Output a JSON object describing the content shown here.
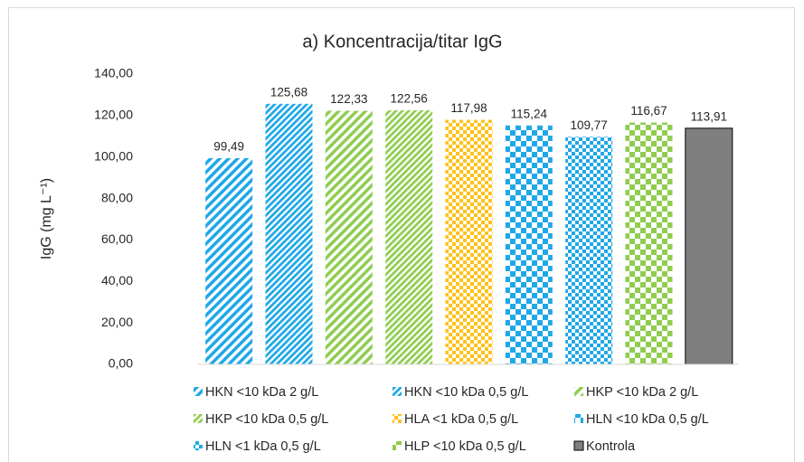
{
  "chart_data": {
    "type": "bar",
    "title": "a) Koncentracija/titar IgG",
    "y_label": "IgG (mg L⁻¹)",
    "ylim": [
      0,
      140
    ],
    "yticks": [
      {
        "value": 0,
        "label": "0,00"
      },
      {
        "value": 20,
        "label": "20,00"
      },
      {
        "value": 40,
        "label": "40,00"
      },
      {
        "value": 60,
        "label": "60,00"
      },
      {
        "value": 80,
        "label": "80,00"
      },
      {
        "value": 100,
        "label": "100,00"
      },
      {
        "value": 120,
        "label": "120,00"
      },
      {
        "value": 140,
        "label": "140,00"
      }
    ],
    "grid": false,
    "legend": "bottom",
    "series": [
      {
        "name": "HKN <10 kDa 2 g/L",
        "color": "#1fa8e8",
        "pattern": "stripes",
        "values": [
          99.49
        ],
        "value_labels": [
          "99,49"
        ]
      },
      {
        "name": "HKN <10 kDa 0,5 g/L",
        "color": "#1fa8e8",
        "pattern": "stripes-dense",
        "values": [
          125.68
        ],
        "value_labels": [
          "125,68"
        ]
      },
      {
        "name": "HKP <10 kDa 2 g/L",
        "color": "#8fcd4f",
        "pattern": "stripes",
        "values": [
          122.33
        ],
        "value_labels": [
          "122,33"
        ]
      },
      {
        "name": "HKP <10 kDa 0,5 g/L",
        "color": "#8fcd4f",
        "pattern": "stripes-dense",
        "values": [
          122.56
        ],
        "value_labels": [
          "122,56"
        ]
      },
      {
        "name": "HLA <1 kDa 0,5 g/L",
        "color": "#ffc21a",
        "pattern": "checker",
        "values": [
          117.98
        ],
        "value_labels": [
          "117,98"
        ]
      },
      {
        "name": "HLN <10 kDa 0,5 g/L",
        "color": "#1fa8e8",
        "pattern": "checker-large",
        "values": [
          115.24
        ],
        "value_labels": [
          "115,24"
        ]
      },
      {
        "name": "HLN <1 kDa 0,5 g/L",
        "color": "#1fa8e8",
        "pattern": "checker",
        "values": [
          109.77
        ],
        "value_labels": [
          "109,77"
        ]
      },
      {
        "name": "HLP <10 kDa 0,5 g/L",
        "color": "#8fcd4f",
        "pattern": "checker-large",
        "values": [
          116.67
        ],
        "value_labels": [
          "116,67"
        ]
      },
      {
        "name": "Kontrola",
        "color": "#7f7f7f",
        "pattern": "solid",
        "values": [
          113.91
        ],
        "value_labels": [
          "113,91"
        ]
      }
    ]
  }
}
